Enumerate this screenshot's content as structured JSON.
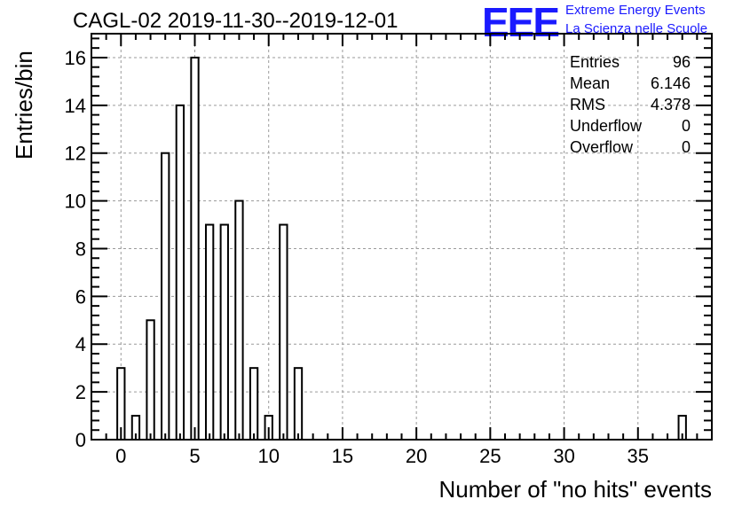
{
  "chart_data": {
    "type": "bar",
    "title": "CAGL-02 2019-11-30--2019-12-01",
    "xlabel": "Number of \"no hits\" events",
    "ylabel": "Entries/bin",
    "xlim": [
      -2,
      40
    ],
    "ylim": [
      0,
      17
    ],
    "x_ticks": [
      0,
      5,
      10,
      15,
      20,
      25,
      30,
      35
    ],
    "y_ticks": [
      0,
      2,
      4,
      6,
      8,
      10,
      12,
      14,
      16
    ],
    "grid": true,
    "bin_width": 0.5,
    "bins": [
      {
        "x": 0,
        "value": 3
      },
      {
        "x": 1,
        "value": 1
      },
      {
        "x": 2,
        "value": 5
      },
      {
        "x": 3,
        "value": 12
      },
      {
        "x": 4,
        "value": 14
      },
      {
        "x": 5,
        "value": 16
      },
      {
        "x": 6,
        "value": 9
      },
      {
        "x": 7,
        "value": 9
      },
      {
        "x": 8,
        "value": 10
      },
      {
        "x": 9,
        "value": 3
      },
      {
        "x": 10,
        "value": 1
      },
      {
        "x": 11,
        "value": 9
      },
      {
        "x": 12,
        "value": 3
      },
      {
        "x": 38,
        "value": 1
      }
    ]
  },
  "stats": [
    {
      "label": "Entries",
      "value": "96"
    },
    {
      "label": "Mean",
      "value": "6.146"
    },
    {
      "label": "RMS",
      "value": "4.378"
    },
    {
      "label": "Underflow",
      "value": "0"
    },
    {
      "label": "Overflow",
      "value": "0"
    }
  ],
  "logo": {
    "mark": "EEE",
    "line1": "Extreme Energy Events",
    "line2": "La Scienza nelle Scuole",
    "color": "#1a1aff"
  }
}
